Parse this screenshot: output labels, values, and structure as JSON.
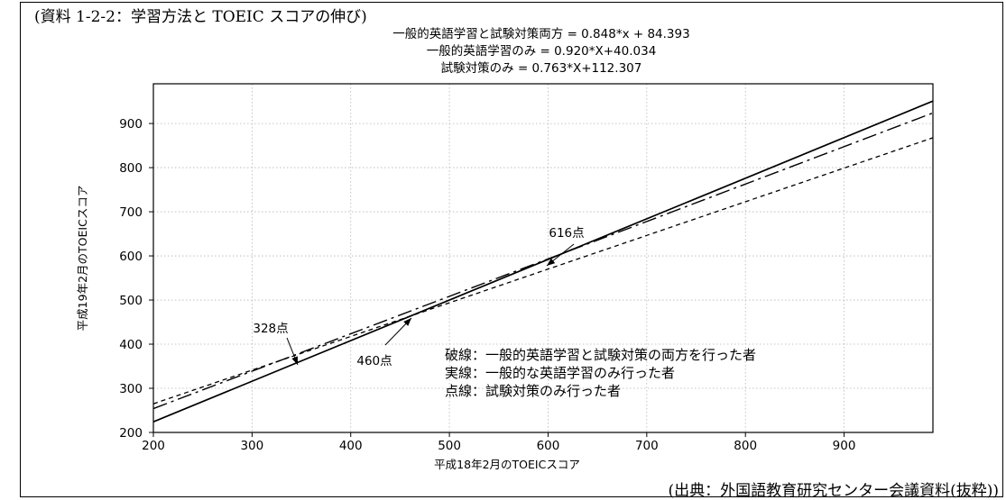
{
  "caption": "(資料 1-2-2：学習方法と TOEIC スコアの伸び)",
  "source": "(出典：外国語教育研究センター会議資料(抜粋))",
  "chart_data": {
    "type": "line",
    "title": [
      "一般的英語学習と試験対策両方 = 0.848*x + 84.393",
      "一般的英語学習のみ = 0.920*X+40.034",
      "試験対策のみ = 0.763*X+112.307"
    ],
    "xlabel": "平成18年2月のTOEICスコア",
    "ylabel": "平成19年2月のTOEICスコア",
    "xlim": [
      200,
      990
    ],
    "ylim": [
      200,
      990
    ],
    "x_ticks": [
      200,
      300,
      400,
      500,
      600,
      700,
      800,
      900
    ],
    "y_ticks": [
      200,
      300,
      400,
      500,
      600,
      700,
      800,
      900
    ],
    "grid": true,
    "series": [
      {
        "slope": 0.848,
        "intercept": 84.393,
        "style": "dashdot",
        "x": [
          200,
          990
        ]
      },
      {
        "slope": 0.92,
        "intercept": 40.034,
        "style": "solid",
        "x": [
          200,
          990
        ]
      },
      {
        "slope": 0.763,
        "intercept": 112.307,
        "style": "dotted",
        "x": [
          200,
          990
        ]
      }
    ],
    "annotations": [
      {
        "text": "328点",
        "x": 328
      },
      {
        "text": "460点",
        "x": 460
      },
      {
        "text": "616点",
        "x": 616
      }
    ],
    "legend": [
      "破線：一般的英語学習と試験対策の両方を行った者",
      "実線：一般的な英語学習のみ行った者",
      "点線：試験対策のみ行った者"
    ]
  }
}
